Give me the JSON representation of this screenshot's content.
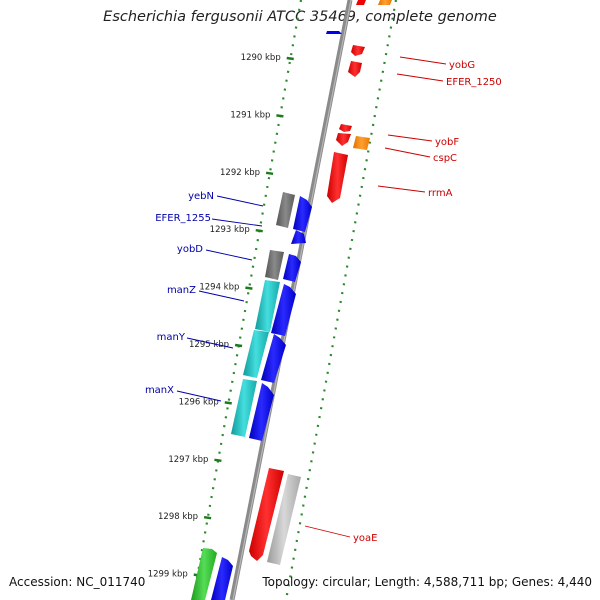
{
  "title": "Escherichia fergusonii ATCC 35469, complete genome",
  "footer": {
    "accession": "Accession: NC_011740",
    "info": "Topology: circular; Length: 4,588,711 bp; Genes: 4,440"
  },
  "colors": {
    "backbone": "#8a8a8a",
    "tick_dots": "#2a8a2a",
    "forward_gene": "#0000ee",
    "reverse_gene_gray": "#6f6f6f",
    "cyan_gene": "#22c2c2",
    "green_gene": "#33bb33",
    "rrna": "#ee0000",
    "orange_gene": "#ff8800",
    "light_gray_gene": "#b8b8b8",
    "label_blue": "#0000aa",
    "label_red": "#cc0000"
  },
  "ticks": [
    {
      "label": "1290 kbp",
      "kbp": 1290
    },
    {
      "label": "1291 kbp",
      "kbp": 1291
    },
    {
      "label": "1292 kbp",
      "kbp": 1292
    },
    {
      "label": "1293 kbp",
      "kbp": 1293
    },
    {
      "label": "1294 kbp",
      "kbp": 1294
    },
    {
      "label": "1295 kbp",
      "kbp": 1295
    },
    {
      "label": "1296 kbp",
      "kbp": 1296
    },
    {
      "label": "1297 kbp",
      "kbp": 1297
    },
    {
      "label": "1298 kbp",
      "kbp": 1298
    },
    {
      "label": "1299 kbp",
      "kbp": 1299
    }
  ],
  "labels_left": [
    {
      "name": "yebN"
    },
    {
      "name": "EFER_1255"
    },
    {
      "name": "yobD"
    },
    {
      "name": "manZ"
    },
    {
      "name": "manY"
    },
    {
      "name": "manX"
    }
  ],
  "labels_right": [
    {
      "name": "yobG"
    },
    {
      "name": "EFER_1250"
    },
    {
      "name": "yobF"
    },
    {
      "name": "cspC"
    },
    {
      "name": "rrmA"
    },
    {
      "name": "yoaE"
    }
  ]
}
